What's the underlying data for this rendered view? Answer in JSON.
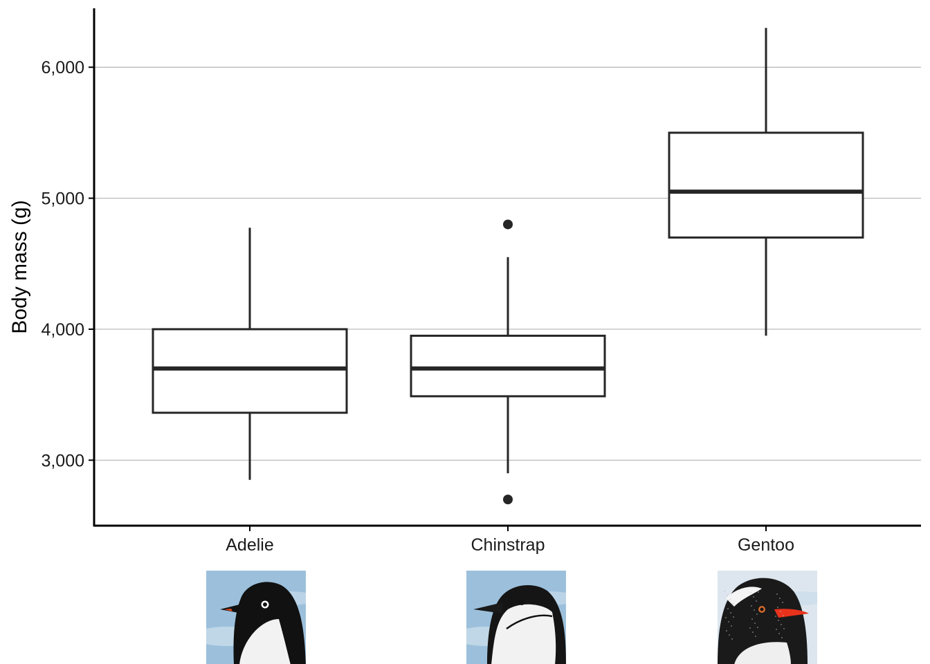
{
  "chart_data": {
    "type": "box",
    "title": "",
    "xlabel": "",
    "ylabel": "Body mass (g)",
    "ylim": [
      2500,
      6450
    ],
    "yticks": [
      3000,
      4000,
      5000,
      6000
    ],
    "ytick_labels": [
      "3,000",
      "4,000",
      "5,000",
      "6,000"
    ],
    "grid": "horizontal",
    "categories": [
      "Adelie",
      "Chinstrap",
      "Gentoo"
    ],
    "boxes": [
      {
        "name": "Adelie",
        "whisker_low": 2850,
        "q1": 3362,
        "median": 3700,
        "q3": 4000,
        "whisker_high": 4775,
        "outliers": []
      },
      {
        "name": "Chinstrap",
        "whisker_low": 2900,
        "q1": 3488,
        "median": 3700,
        "q3": 3950,
        "whisker_high": 4550,
        "outliers": [
          4800,
          2700
        ]
      },
      {
        "name": "Gentoo",
        "whisker_low": 3950,
        "q1": 4700,
        "median": 5050,
        "q3": 5500,
        "whisker_high": 6300,
        "outliers": []
      }
    ],
    "category_images": [
      {
        "name": "Adelie",
        "icon": "adelie-penguin-photo",
        "colors": {
          "sky": "#9cc0dc",
          "head": "#111111",
          "beak": "#e04a1e",
          "chest": "#f2f2f2"
        }
      },
      {
        "name": "Chinstrap",
        "icon": "chinstrap-penguin-photo",
        "colors": {
          "sky": "#9cc0dc",
          "head": "#151515",
          "beak": "#1a1a1a",
          "chest": "#f2f2f2"
        }
      },
      {
        "name": "Gentoo",
        "icon": "gentoo-penguin-photo",
        "colors": {
          "sky": "#dde6ee",
          "head": "#1a1a1a",
          "beak": "#e8321c",
          "chest": "#efefef"
        }
      }
    ]
  },
  "style": {
    "box_stroke": "#262626",
    "grid_color": "#b3b3b3",
    "axis_color": "#000000",
    "box_fill": "#ffffff"
  }
}
